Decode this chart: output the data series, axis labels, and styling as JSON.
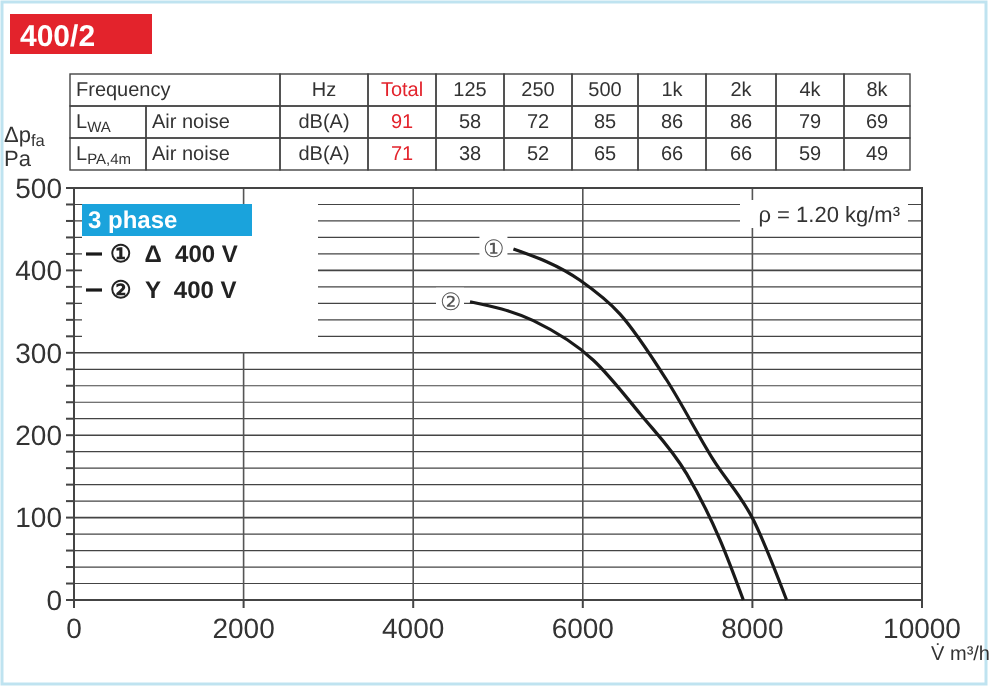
{
  "chart_data": {
    "type": "line",
    "title": "400/2",
    "legend_title": "3 phase",
    "xlabel": "V̇ m³/h",
    "ylabel": "Δp$_{fa}$ Pa",
    "xlim": [
      0,
      10000
    ],
    "xticks": [
      0,
      2000,
      4000,
      6000,
      8000,
      10000
    ],
    "ylim": [
      0,
      500
    ],
    "yticks": [
      0,
      {
        "value": 20,
        "label": null
      },
      {
        "value": 40,
        "label": null
      },
      {
        "value": 60,
        "label": null
      },
      {
        "value": 80,
        "label": null
      },
      100,
      {
        "value": 120,
        "label": null
      },
      {
        "value": 140,
        "label": null
      },
      {
        "value": 160,
        "label": null
      },
      {
        "value": 180,
        "label": null
      },
      200,
      {
        "value": 220,
        "label": null
      },
      {
        "value": 240,
        "label": null
      },
      {
        "value": 260,
        "label": null
      },
      {
        "value": 280,
        "label": null
      },
      300,
      {
        "value": 320,
        "label": null
      },
      {
        "value": 340,
        "label": null
      },
      {
        "value": 360,
        "label": null
      },
      {
        "value": 380,
        "label": null
      },
      400,
      {
        "value": 420,
        "label": null
      },
      {
        "value": 440,
        "label": null
      },
      {
        "value": 460,
        "label": null
      },
      {
        "value": 480,
        "label": null
      },
      500
    ],
    "grid": true,
    "legend": "top left",
    "marker": "none",
    "line_style": "solid",
    "series": [
      {
        "name": "①  Δ  400 V",
        "color": "#1a1a1a",
        "x": [
          5182,
          5967,
          6439,
          6989,
          7540,
          8012,
          8403
        ],
        "values": [
          426,
          388,
          347,
          267,
          170,
          97,
          0
        ]
      },
      {
        "name": "②  Y  400 V",
        "color": "#1a1a1a",
        "x": [
          4670,
          5417,
          6125,
          6675,
          7225,
          7618,
          7893
        ],
        "values": [
          362,
          339,
          291,
          226,
          153,
          73,
          0
        ]
      }
    ],
    "annotations": [
      "Frequency",
      "Hz",
      "Total",
      "125",
      "250",
      "500",
      "1k",
      "2k",
      "4k",
      "8k",
      "L$_{WA}$",
      "Air noise",
      "dB(A)",
      "91",
      "58",
      "72",
      "85",
      "86",
      "86",
      "79",
      "69",
      "L$_{PA,4m}$",
      "Air noise",
      "dB(A)",
      "71",
      "38",
      "52",
      "65",
      "66",
      "66",
      "59",
      "49",
      {
        "text": "①",
        "x": 5182,
        "y": 426
      },
      {
        "text": "②",
        "x": 4670,
        "y": 362
      },
      "ρ = 1.20 kg/m³"
    ]
  }
}
